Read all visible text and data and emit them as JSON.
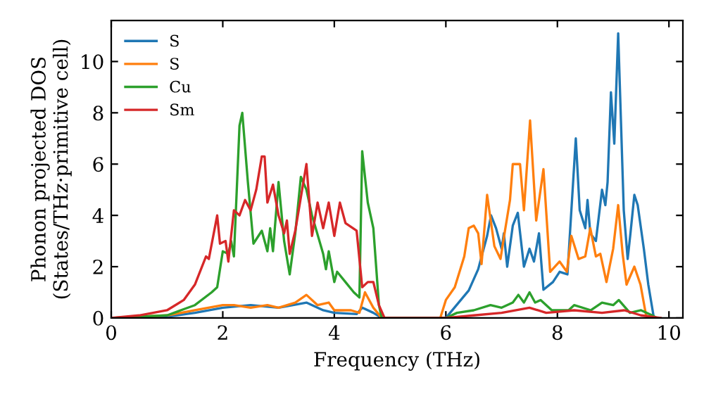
{
  "chart_data": {
    "type": "line",
    "xlabel": "Frequency (THz)",
    "ylabel": "Phonon projected DOS\n(States/THz·primitive cell)",
    "xlim": [
      0,
      10.25
    ],
    "ylim": [
      0,
      11.6
    ],
    "xticks": [
      0,
      2,
      4,
      6,
      8,
      10
    ],
    "yticks": [
      0,
      2,
      4,
      6,
      8,
      10
    ],
    "grid": false,
    "legend": "top left",
    "line_style": "solid",
    "marker": "none",
    "series": [
      {
        "name": "S",
        "color": "#1f77b4",
        "x": [
          0,
          1.0,
          1.5,
          2.0,
          2.5,
          3.0,
          3.5,
          3.8,
          4.0,
          4.4,
          4.5,
          4.7,
          4.85,
          6.0,
          6.41,
          6.58,
          6.74,
          6.81,
          6.9,
          7.0,
          7.04,
          7.1,
          7.2,
          7.29,
          7.4,
          7.5,
          7.58,
          7.67,
          7.75,
          7.92,
          8.04,
          8.18,
          8.33,
          8.4,
          8.5,
          8.54,
          8.59,
          8.69,
          8.8,
          8.86,
          8.9,
          8.96,
          9.02,
          9.09,
          9.19,
          9.26,
          9.31,
          9.38,
          9.44,
          9.55,
          9.63,
          9.73
        ],
        "values": [
          0,
          0.05,
          0.2,
          0.4,
          0.5,
          0.4,
          0.6,
          0.3,
          0.2,
          0.15,
          0.4,
          0.2,
          0,
          0,
          1.07,
          1.9,
          3.2,
          4.0,
          3.5,
          2.7,
          3.3,
          2.0,
          3.6,
          4.1,
          2.0,
          2.7,
          2.2,
          3.3,
          1.1,
          1.4,
          1.8,
          1.7,
          7.0,
          4.2,
          3.5,
          4.6,
          3.3,
          3.0,
          5.0,
          4.4,
          5.3,
          8.8,
          6.8,
          11.1,
          4.2,
          2.3,
          3.3,
          4.8,
          4.4,
          2.7,
          1.3,
          0
        ]
      },
      {
        "name": "S",
        "color": "#ff7f0e",
        "x": [
          0,
          1.0,
          1.5,
          2.0,
          2.2,
          2.5,
          2.8,
          3.0,
          3.3,
          3.5,
          3.7,
          3.9,
          4.0,
          4.3,
          4.45,
          4.55,
          4.7,
          4.85,
          5.9,
          6.0,
          6.16,
          6.33,
          6.41,
          6.5,
          6.58,
          6.64,
          6.74,
          6.87,
          6.98,
          7.06,
          7.15,
          7.2,
          7.33,
          7.4,
          7.51,
          7.62,
          7.75,
          7.87,
          8.04,
          8.17,
          8.25,
          8.38,
          8.5,
          8.59,
          8.69,
          8.77,
          8.88,
          9.0,
          9.09,
          9.17,
          9.24,
          9.38,
          9.49,
          9.59,
          9.67
        ],
        "values": [
          0,
          0.1,
          0.3,
          0.5,
          0.5,
          0.4,
          0.5,
          0.4,
          0.6,
          0.9,
          0.5,
          0.6,
          0.3,
          0.3,
          0.2,
          1.0,
          0.4,
          0,
          0,
          0.7,
          1.2,
          2.4,
          3.5,
          3.6,
          3.3,
          2.1,
          4.8,
          2.8,
          2.3,
          3.4,
          4.6,
          6.0,
          6.0,
          4.2,
          7.7,
          3.8,
          5.8,
          1.8,
          2.2,
          1.8,
          3.2,
          2.3,
          2.4,
          3.5,
          2.4,
          2.5,
          1.4,
          2.7,
          4.4,
          2.5,
          1.3,
          2.0,
          1.3,
          0.1,
          0
        ]
      },
      {
        "name": "Cu",
        "color": "#2ca02c",
        "x": [
          0,
          1.0,
          1.5,
          1.8,
          1.9,
          2.0,
          2.1,
          2.15,
          2.2,
          2.3,
          2.35,
          2.45,
          2.55,
          2.7,
          2.8,
          2.85,
          2.9,
          3.0,
          3.1,
          3.2,
          3.3,
          3.4,
          3.5,
          3.6,
          3.8,
          3.85,
          3.9,
          4.0,
          4.05,
          4.2,
          4.35,
          4.45,
          4.5,
          4.6,
          4.7,
          4.8,
          4.85,
          6.0,
          6.2,
          6.5,
          6.8,
          7.0,
          7.2,
          7.3,
          7.4,
          7.5,
          7.6,
          7.7,
          7.9,
          8.2,
          8.3,
          8.6,
          8.8,
          9.0,
          9.1,
          9.3,
          9.5,
          9.7,
          9.78
        ],
        "values": [
          0,
          0.1,
          0.5,
          1.0,
          1.2,
          2.6,
          2.5,
          3.0,
          2.4,
          7.5,
          8.0,
          5.3,
          2.9,
          3.4,
          2.6,
          3.5,
          2.6,
          5.3,
          3.0,
          1.7,
          3.3,
          5.5,
          5.0,
          4.0,
          2.5,
          1.9,
          2.6,
          1.4,
          1.8,
          1.4,
          1.0,
          0.8,
          6.5,
          4.5,
          3.5,
          0.5,
          0,
          0,
          0.2,
          0.3,
          0.5,
          0.4,
          0.6,
          0.9,
          0.6,
          1.0,
          0.6,
          0.7,
          0.3,
          0.3,
          0.5,
          0.3,
          0.6,
          0.5,
          0.7,
          0.2,
          0.3,
          0.1,
          0
        ]
      },
      {
        "name": "Sm",
        "color": "#d62728",
        "x": [
          0,
          0.5,
          1.0,
          1.3,
          1.5,
          1.7,
          1.75,
          1.9,
          1.95,
          2.05,
          2.1,
          2.2,
          2.3,
          2.4,
          2.5,
          2.6,
          2.7,
          2.75,
          2.8,
          2.9,
          3.0,
          3.1,
          3.15,
          3.2,
          3.3,
          3.5,
          3.6,
          3.7,
          3.8,
          3.9,
          4.0,
          4.1,
          4.2,
          4.4,
          4.5,
          4.6,
          4.7,
          4.8,
          4.9,
          6.0,
          6.5,
          7.0,
          7.5,
          7.8,
          8.3,
          8.8,
          9.2,
          9.5,
          9.85
        ],
        "values": [
          0,
          0.1,
          0.3,
          0.7,
          1.3,
          2.4,
          2.3,
          4.0,
          2.9,
          3.0,
          2.2,
          4.2,
          4.0,
          4.6,
          4.2,
          5.0,
          6.3,
          6.3,
          4.5,
          5.2,
          4.0,
          3.3,
          3.8,
          2.5,
          3.4,
          6.0,
          3.2,
          4.5,
          3.5,
          4.5,
          3.2,
          4.5,
          3.7,
          3.4,
          1.2,
          1.4,
          1.4,
          0.5,
          0,
          0,
          0.1,
          0.2,
          0.4,
          0.2,
          0.3,
          0.2,
          0.3,
          0.1,
          0
        ]
      }
    ]
  }
}
